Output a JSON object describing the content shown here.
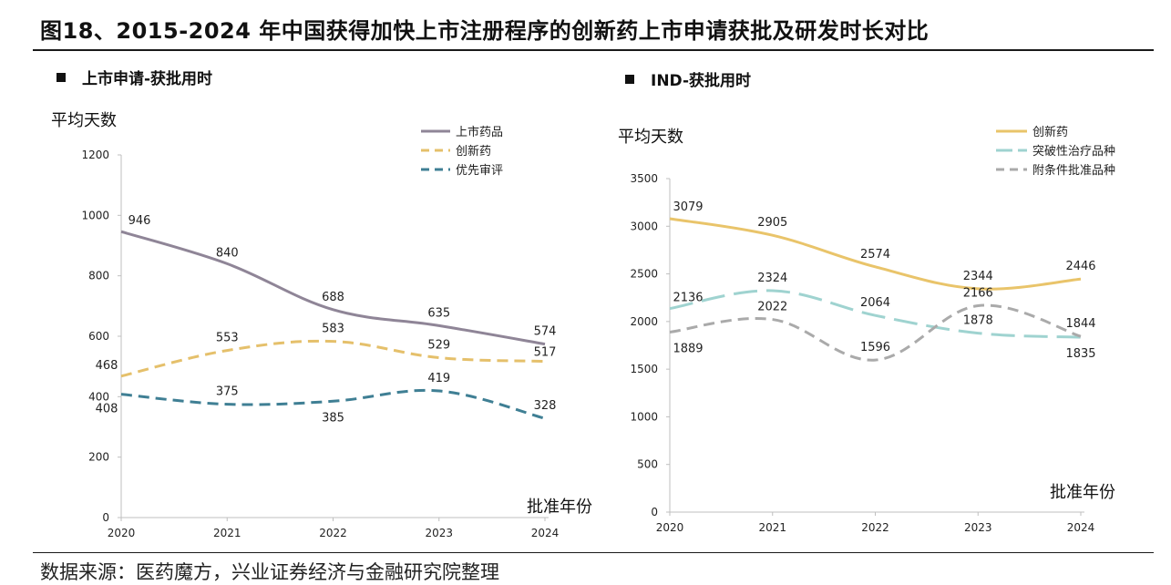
{
  "title": "图18、2015-2024 年中国获得加快上市注册程序的创新药上市申请获批及研发时长对比",
  "source": "数据来源：医药魔方，兴业证券经济与金融研究院整理",
  "chart_data": [
    {
      "type": "line",
      "panel_title": "上市申请-获批用时",
      "ylabel": "平均天数",
      "xlabel": "批准年份",
      "x": [
        "2020",
        "2021",
        "2022",
        "2023",
        "2024"
      ],
      "ylim": [
        0,
        1200
      ],
      "yticks": [
        0,
        200,
        400,
        600,
        800,
        1000,
        1200
      ],
      "legend_position": "top-right",
      "series": [
        {
          "name": "上市药品",
          "values": [
            946,
            840,
            688,
            635,
            574
          ],
          "color": "#8f8597",
          "dash": "solid"
        },
        {
          "name": "创新药",
          "values": [
            468,
            553,
            583,
            529,
            517
          ],
          "color": "#e5c06b",
          "dash": "dashed"
        },
        {
          "name": "优先审评",
          "values": [
            408,
            375,
            385,
            419,
            328
          ],
          "color": "#3f7f94",
          "dash": "dashed"
        }
      ]
    },
    {
      "type": "line",
      "panel_title": "IND-获批用时",
      "ylabel": "平均天数",
      "xlabel": "批准年份",
      "x": [
        "2020",
        "2021",
        "2022",
        "2023",
        "2024"
      ],
      "ylim": [
        0,
        3500
      ],
      "yticks": [
        0,
        500,
        1000,
        1500,
        2000,
        2500,
        3000,
        3500
      ],
      "legend_position": "top-right",
      "series": [
        {
          "name": "创新药",
          "values": [
            3079,
            2905,
            2574,
            2344,
            2446
          ],
          "color": "#e9c46a",
          "dash": "solid"
        },
        {
          "name": "突破性治疗品种",
          "values": [
            2136,
            2324,
            2064,
            1878,
            1835
          ],
          "color": "#9fd3d0",
          "dash": "longdash"
        },
        {
          "name": "附条件批准品种",
          "values": [
            1889,
            2022,
            1596,
            2166,
            1844
          ],
          "color": "#aaaaaa",
          "dash": "dashed"
        }
      ]
    }
  ]
}
